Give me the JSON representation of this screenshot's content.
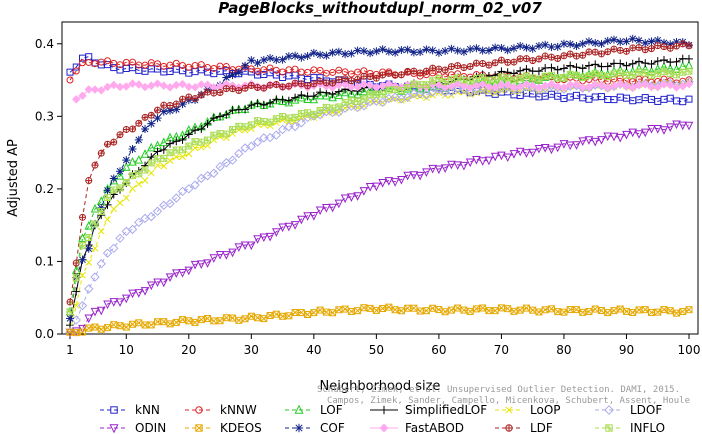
{
  "chart_data": {
    "type": "line",
    "title": "PageBlocks_withoutdupl_norm_02_v07",
    "xlabel": "Neighborhood size",
    "ylabel": "Adjusted AP",
    "xlim": [
      1,
      100
    ],
    "ylim": [
      0,
      0.43
    ],
    "x_ticks": [
      1,
      10,
      20,
      30,
      40,
      50,
      60,
      70,
      80,
      90,
      100
    ],
    "y_ticks": [
      0.0,
      0.1,
      0.2,
      0.3,
      0.4
    ],
    "x_tick_labels": [
      "1",
      "10",
      "20",
      "30",
      "40",
      "50",
      "60",
      "70",
      "80",
      "90",
      "100"
    ],
    "y_tick_labels": [
      "0.0",
      "0.1",
      "0.2",
      "0.3",
      "0.4"
    ],
    "grid": false,
    "legend_position": "bottom",
    "watermark": [
      "Schubert, Zimek, et al. Unsupervised Outlier Detection. DAMI, 2015.",
      "Campos, Zimek, Sander, Campello, Micenkova, Schubert, Assent, Houle"
    ],
    "series": [
      {
        "name": "kNN",
        "color": "#2222cc",
        "marker": "square",
        "dash": "4,3",
        "points": [
          [
            1,
            0.362
          ],
          [
            2,
            0.37
          ],
          [
            3,
            0.378
          ],
          [
            4,
            0.382
          ],
          [
            6,
            0.37
          ],
          [
            10,
            0.365
          ],
          [
            20,
            0.362
          ],
          [
            30,
            0.36
          ],
          [
            40,
            0.352
          ],
          [
            50,
            0.343
          ],
          [
            60,
            0.338
          ],
          [
            70,
            0.332
          ],
          [
            80,
            0.327
          ],
          [
            90,
            0.324
          ],
          [
            100,
            0.322
          ]
        ]
      },
      {
        "name": "kNNW",
        "color": "#dd2222",
        "marker": "circle",
        "dash": "4,3",
        "points": [
          [
            1,
            0.35
          ],
          [
            2,
            0.365
          ],
          [
            3,
            0.372
          ],
          [
            5,
            0.375
          ],
          [
            10,
            0.373
          ],
          [
            20,
            0.37
          ],
          [
            30,
            0.365
          ],
          [
            40,
            0.362
          ],
          [
            50,
            0.36
          ],
          [
            60,
            0.357
          ],
          [
            70,
            0.355
          ],
          [
            80,
            0.352
          ],
          [
            90,
            0.35
          ],
          [
            100,
            0.348
          ]
        ]
      },
      {
        "name": "LOF",
        "color": "#22cc22",
        "marker": "triangle-up",
        "dash": "4,3",
        "points": [
          [
            1,
            0.03
          ],
          [
            2,
            0.09
          ],
          [
            3,
            0.13
          ],
          [
            5,
            0.17
          ],
          [
            7,
            0.2
          ],
          [
            10,
            0.23
          ],
          [
            15,
            0.26
          ],
          [
            20,
            0.28
          ],
          [
            25,
            0.3
          ],
          [
            30,
            0.315
          ],
          [
            40,
            0.325
          ],
          [
            50,
            0.335
          ],
          [
            60,
            0.34
          ],
          [
            70,
            0.348
          ],
          [
            80,
            0.355
          ],
          [
            90,
            0.362
          ],
          [
            100,
            0.368
          ]
        ]
      },
      {
        "name": "SimplifiedLOF",
        "color": "#000000",
        "marker": "plus",
        "dash": "",
        "points": [
          [
            1,
            0.01
          ],
          [
            2,
            0.06
          ],
          [
            3,
            0.1
          ],
          [
            5,
            0.15
          ],
          [
            7,
            0.18
          ],
          [
            10,
            0.21
          ],
          [
            15,
            0.25
          ],
          [
            20,
            0.275
          ],
          [
            25,
            0.3
          ],
          [
            30,
            0.315
          ],
          [
            40,
            0.33
          ],
          [
            50,
            0.34
          ],
          [
            60,
            0.345
          ],
          [
            70,
            0.36
          ],
          [
            80,
            0.367
          ],
          [
            90,
            0.372
          ],
          [
            100,
            0.378
          ]
        ]
      },
      {
        "name": "LoOP",
        "color": "#e6e600",
        "marker": "cross",
        "dash": "4,3",
        "points": [
          [
            1,
            0.0
          ],
          [
            2,
            0.04
          ],
          [
            3,
            0.08
          ],
          [
            5,
            0.12
          ],
          [
            7,
            0.16
          ],
          [
            10,
            0.19
          ],
          [
            15,
            0.23
          ],
          [
            20,
            0.25
          ],
          [
            25,
            0.27
          ],
          [
            30,
            0.285
          ],
          [
            40,
            0.3
          ],
          [
            50,
            0.32
          ],
          [
            60,
            0.33
          ],
          [
            70,
            0.335
          ],
          [
            80,
            0.34
          ],
          [
            90,
            0.342
          ],
          [
            100,
            0.345
          ]
        ]
      },
      {
        "name": "LDOF",
        "color": "#aaaaee",
        "marker": "diamond",
        "dash": "4,3",
        "points": [
          [
            1,
            0.0
          ],
          [
            2,
            0.02
          ],
          [
            3,
            0.04
          ],
          [
            5,
            0.08
          ],
          [
            7,
            0.11
          ],
          [
            10,
            0.14
          ],
          [
            15,
            0.17
          ],
          [
            20,
            0.2
          ],
          [
            25,
            0.23
          ],
          [
            30,
            0.26
          ],
          [
            40,
            0.3
          ],
          [
            50,
            0.32
          ],
          [
            60,
            0.335
          ],
          [
            70,
            0.338
          ],
          [
            80,
            0.34
          ],
          [
            90,
            0.342
          ],
          [
            100,
            0.345
          ]
        ]
      },
      {
        "name": "ODIN",
        "color": "#9922cc",
        "marker": "triangle-down",
        "dash": "4,3",
        "points": [
          [
            1,
            0.0
          ],
          [
            3,
            0.01
          ],
          [
            5,
            0.03
          ],
          [
            7,
            0.04
          ],
          [
            10,
            0.05
          ],
          [
            15,
            0.07
          ],
          [
            20,
            0.09
          ],
          [
            30,
            0.125
          ],
          [
            40,
            0.165
          ],
          [
            50,
            0.205
          ],
          [
            60,
            0.228
          ],
          [
            70,
            0.245
          ],
          [
            80,
            0.26
          ],
          [
            90,
            0.275
          ],
          [
            100,
            0.29
          ]
        ]
      },
      {
        "name": "KDEOS",
        "color": "#e6a800",
        "marker": "square-x",
        "dash": "4,3",
        "points": [
          [
            1,
            0.0
          ],
          [
            3,
            0.005
          ],
          [
            5,
            0.008
          ],
          [
            10,
            0.012
          ],
          [
            20,
            0.018
          ],
          [
            30,
            0.022
          ],
          [
            40,
            0.03
          ],
          [
            50,
            0.035
          ],
          [
            60,
            0.033
          ],
          [
            70,
            0.034
          ],
          [
            80,
            0.032
          ],
          [
            90,
            0.032
          ],
          [
            100,
            0.031
          ]
        ]
      },
      {
        "name": "COF",
        "color": "#112288",
        "marker": "asterisk",
        "dash": "4,3",
        "points": [
          [
            1,
            0.02
          ],
          [
            2,
            0.08
          ],
          [
            3,
            0.1
          ],
          [
            4,
            0.12
          ],
          [
            5,
            0.15
          ],
          [
            7,
            0.2
          ],
          [
            10,
            0.24
          ],
          [
            12,
            0.27
          ],
          [
            15,
            0.3
          ],
          [
            20,
            0.32
          ],
          [
            25,
            0.345
          ],
          [
            30,
            0.375
          ],
          [
            40,
            0.385
          ],
          [
            50,
            0.39
          ],
          [
            60,
            0.39
          ],
          [
            70,
            0.393
          ],
          [
            80,
            0.398
          ],
          [
            90,
            0.405
          ],
          [
            100,
            0.4
          ]
        ]
      },
      {
        "name": "FastABOD",
        "color": "#ffaaee",
        "marker": "diamond-filled",
        "dash": "",
        "points": [
          [
            2,
            0.325
          ],
          [
            4,
            0.335
          ],
          [
            7,
            0.34
          ],
          [
            10,
            0.343
          ],
          [
            20,
            0.342
          ],
          [
            30,
            0.342
          ],
          [
            40,
            0.342
          ],
          [
            50,
            0.342
          ],
          [
            60,
            0.342
          ],
          [
            70,
            0.342
          ],
          [
            80,
            0.342
          ],
          [
            90,
            0.342
          ],
          [
            100,
            0.342
          ]
        ]
      },
      {
        "name": "LDF",
        "color": "#aa2222",
        "marker": "circle-plus",
        "dash": "4,3",
        "points": [
          [
            1,
            0.045
          ],
          [
            2,
            0.1
          ],
          [
            3,
            0.16
          ],
          [
            4,
            0.21
          ],
          [
            5,
            0.235
          ],
          [
            7,
            0.26
          ],
          [
            10,
            0.28
          ],
          [
            12,
            0.29
          ],
          [
            15,
            0.31
          ],
          [
            20,
            0.325
          ],
          [
            25,
            0.335
          ],
          [
            30,
            0.34
          ],
          [
            40,
            0.345
          ],
          [
            50,
            0.355
          ],
          [
            60,
            0.365
          ],
          [
            70,
            0.375
          ],
          [
            80,
            0.383
          ],
          [
            90,
            0.392
          ],
          [
            100,
            0.398
          ]
        ]
      },
      {
        "name": "INFLO",
        "color": "#aadd55",
        "marker": "square-asterisk",
        "dash": "4,3",
        "points": [
          [
            1,
            0.03
          ],
          [
            2,
            0.08
          ],
          [
            3,
            0.12
          ],
          [
            5,
            0.15
          ],
          [
            7,
            0.19
          ],
          [
            10,
            0.21
          ],
          [
            15,
            0.24
          ],
          [
            20,
            0.26
          ],
          [
            25,
            0.275
          ],
          [
            30,
            0.29
          ],
          [
            40,
            0.305
          ],
          [
            50,
            0.33
          ],
          [
            60,
            0.35
          ],
          [
            70,
            0.352
          ],
          [
            80,
            0.355
          ],
          [
            90,
            0.358
          ],
          [
            100,
            0.36
          ]
        ]
      }
    ]
  }
}
